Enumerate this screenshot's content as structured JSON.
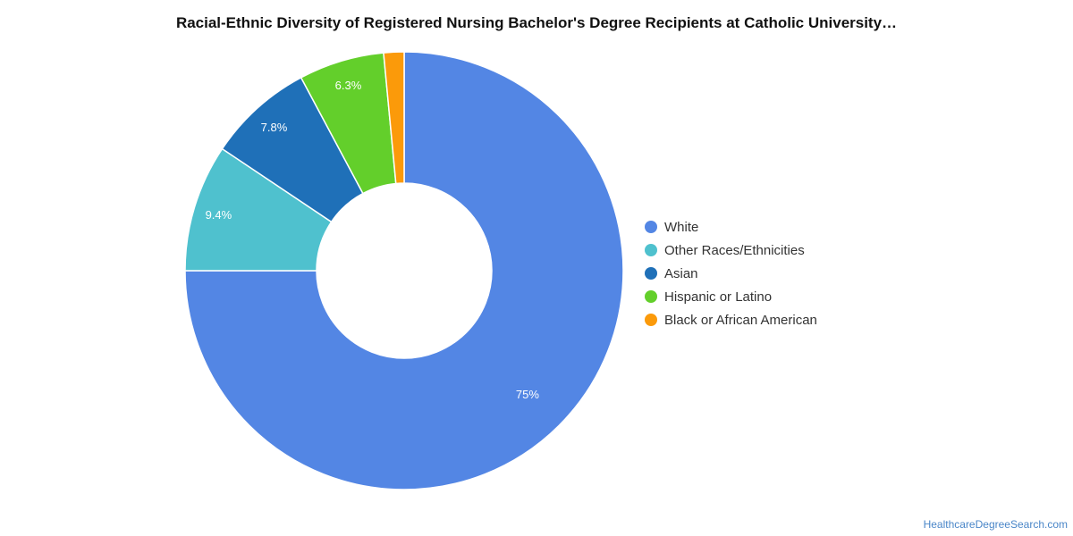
{
  "title": "Racial-Ethnic Diversity of Registered Nursing Bachelor's Degree Recipients at Catholic University…",
  "watermark": "HealthcareDegreeSearch.com",
  "chart_data": {
    "type": "pie",
    "donut": true,
    "title": "Racial-Ethnic Diversity of Registered Nursing Bachelor's Degree Recipients at Catholic University…",
    "legend_position": "right",
    "slices": [
      {
        "name": "White",
        "value": 75.0,
        "label": "75%",
        "color": "#5386e4"
      },
      {
        "name": "Other Races/Ethnicities",
        "value": 9.4,
        "label": "9.4%",
        "color": "#4fc1ce"
      },
      {
        "name": "Asian",
        "value": 7.8,
        "label": "7.8%",
        "color": "#1f70b8"
      },
      {
        "name": "Hispanic or Latino",
        "value": 6.3,
        "label": "6.3%",
        "color": "#63cf2b"
      },
      {
        "name": "Black or African American",
        "value": 1.5,
        "label": "",
        "color": "#fb9a0a"
      }
    ]
  }
}
